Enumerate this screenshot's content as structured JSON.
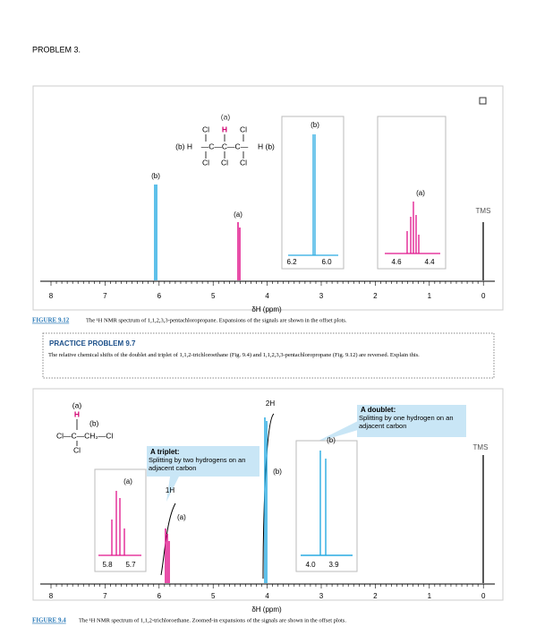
{
  "problem_label": "PROBLEM 3.",
  "figure1": {
    "structure": {
      "top_label": "(a)",
      "top_row": [
        "Cl",
        "H",
        "Cl"
      ],
      "middle_left": "(b) H",
      "middle_chain": "—C—C—C—",
      "middle_right": "H (b)",
      "bottom_row": [
        "Cl",
        "Cl",
        "Cl"
      ]
    },
    "peak_labels": {
      "b": "(b)",
      "a": "(a)",
      "tms": "TMS"
    },
    "inset_b": {
      "label": "(b)",
      "ticks": [
        "6.2",
        "6.0"
      ]
    },
    "inset_a": {
      "label": "(a)",
      "ticks": [
        "4.6",
        "4.4"
      ]
    },
    "axis_ticks": [
      "8",
      "7",
      "6",
      "5",
      "4",
      "3",
      "2",
      "1",
      "0"
    ],
    "axis_label": "δH (ppm)",
    "caption_ref": "FIGURE 9.12",
    "caption_text": "The ¹H NMR spectrum of 1,1,2,3,3-pentachloropropane. Expansions of the signals are shown in the offset plots."
  },
  "practice": {
    "title": "PRACTICE PROBLEM 9.7",
    "text": "The relative chemical shifts of the doublet and triplet of 1,1,2-trichloroethane (Fig. 9.4) and 1,1,2,3,3-pentachloropropane (Fig. 9.12) are reversed. Explain this."
  },
  "figure2": {
    "structure": {
      "top_label": "(a)",
      "h": "H",
      "b_label": "(b)",
      "chain": "Cl—C—CH₂—Cl",
      "bottom": "Cl"
    },
    "callout_triplet": {
      "title": "A triplet:",
      "text": "Splitting by two hydrogens on an adjacent carbon"
    },
    "callout_doublet": {
      "title": "A doublet:",
      "text": "Splitting by one hydrogen on an adjacent carbon"
    },
    "integrals": {
      "a": "1H",
      "b": "2H"
    },
    "peak_labels": {
      "a": "(a)",
      "b": "(b)",
      "tms": "TMS"
    },
    "inset_a": {
      "label": "(a)",
      "ticks": [
        "5.8",
        "5.7"
      ]
    },
    "inset_b": {
      "label": "(b)",
      "ticks": [
        "4.0",
        "3.9"
      ]
    },
    "axis_ticks": [
      "8",
      "7",
      "6",
      "5",
      "4",
      "3",
      "2",
      "1",
      "0"
    ],
    "axis_label": "δH (ppm)",
    "caption_ref": "FIGURE 9.4",
    "caption_text": "The ¹H NMR spectrum of 1,1,2-trichloroethane. Zoomed-in expansions of the signals are shown in the offset plots."
  }
}
